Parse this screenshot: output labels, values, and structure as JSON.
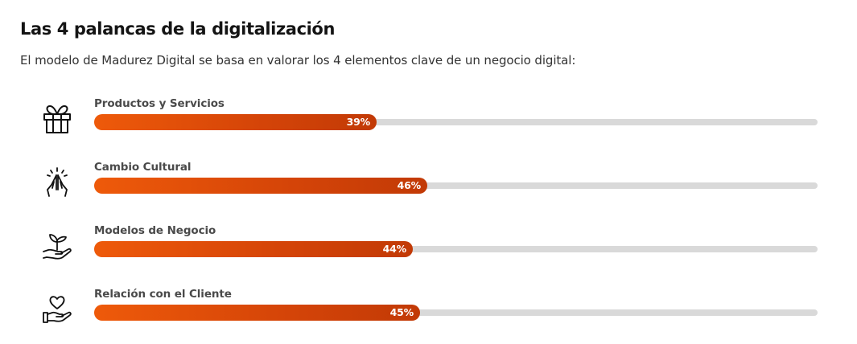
{
  "page": {
    "title": "Las 4 palancas de la digitalización",
    "subtitle": "El modelo de Madurez Digital se basa en valorar los 4 elementos clave de un negocio digital:"
  },
  "colors": {
    "bar_fill": "#d44408",
    "bar_track": "#d9d9d9",
    "value_text": "#ffffff"
  },
  "chart_data": {
    "type": "bar",
    "orientation": "horizontal",
    "categories": [
      "Productos y Servicios",
      "Cambio Cultural",
      "Modelos de Negocio",
      "Relación con el Cliente"
    ],
    "values": [
      39,
      46,
      44,
      45
    ],
    "value_labels": [
      "39%",
      "46%",
      "44%",
      "45%"
    ],
    "icons": [
      "gift-icon",
      "praying-hands-icon",
      "plant-in-hand-icon",
      "heart-in-hand-icon"
    ],
    "xlim": [
      0,
      100
    ],
    "unit": "%",
    "grid": false,
    "legend": "none"
  }
}
